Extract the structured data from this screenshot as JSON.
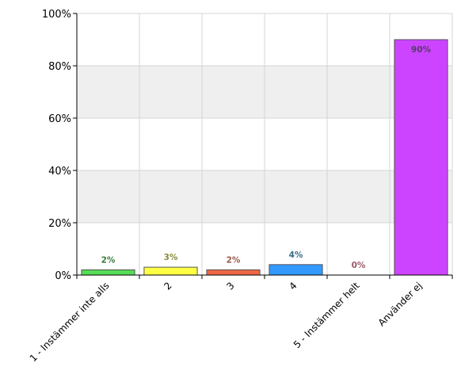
{
  "chart_data": {
    "type": "bar",
    "categories": [
      "1 - Instämmer inte alls",
      "2",
      "3",
      "4",
      "5 - Instämmer helt",
      "Använder ej"
    ],
    "values": [
      2,
      3,
      2,
      4,
      0,
      90
    ],
    "value_labels": [
      "2%",
      "3%",
      "2%",
      "4%",
      "0%",
      "90%"
    ],
    "bar_colors": [
      "#55dd55",
      "#ffff44",
      "#ee6644",
      "#3399ff",
      "#ff99cc",
      "#cc44ff"
    ],
    "label_colors": [
      "#3a7a3a",
      "#8a8a3a",
      "#9a5a4a",
      "#3a6a8a",
      "#9a5a6a",
      "#5a3a6a"
    ],
    "ylim": [
      0,
      100
    ],
    "yticks": [
      0,
      20,
      40,
      60,
      80,
      100
    ],
    "ytick_labels": [
      "0%",
      "20%",
      "40%",
      "60%",
      "80%",
      "100%"
    ],
    "grid": true,
    "title": "",
    "xlabel": "",
    "ylabel": ""
  }
}
